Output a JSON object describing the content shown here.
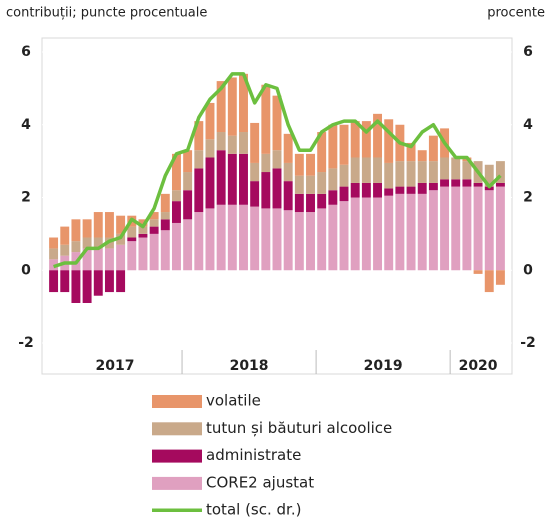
{
  "chart_data": {
    "type": "bar",
    "subtitle_left": "contribuții; puncte procentuale",
    "subtitle_right": "procente",
    "categories": [
      null,
      null,
      null,
      null,
      null,
      null,
      null,
      null,
      null,
      null,
      null,
      null,
      null,
      null,
      null,
      null,
      null,
      null,
      null,
      null,
      null,
      null,
      null,
      null,
      null,
      null,
      null,
      null,
      null,
      null,
      null,
      null,
      null,
      null,
      null,
      null,
      null,
      null,
      null,
      null,
      null
    ],
    "year_labels": [
      "2017",
      "2018",
      "2019",
      "2020"
    ],
    "ylim": [
      -2,
      6
    ],
    "yticks": [
      -2,
      0,
      2,
      4,
      6
    ],
    "y2lim": [
      -2,
      6
    ],
    "y2ticks": [
      -2,
      0,
      2,
      4,
      6
    ],
    "series": [
      {
        "name": "volatile",
        "color": "#e8956a",
        "values": [
          0.3,
          0.5,
          0.6,
          0.5,
          0.7,
          0.7,
          0.5,
          0.3,
          0.2,
          0.2,
          0.5,
          1.0,
          0.6,
          0.8,
          1.0,
          1.4,
          1.6,
          1.6,
          1.1,
          1.9,
          1.5,
          0.8,
          0.6,
          0.6,
          1.1,
          1.2,
          1.1,
          1.0,
          1.0,
          1.2,
          1.2,
          1.0,
          0.5,
          0.3,
          0.7,
          0.8,
          0.0,
          0.1,
          -0.1,
          -0.6,
          -0.4
        ]
      },
      {
        "name": "tutun și băuturi alcoolice",
        "color": "#c9a98a",
        "values": [
          0.3,
          0.3,
          0.3,
          0.3,
          0.3,
          0.3,
          0.3,
          0.3,
          0.2,
          0.2,
          0.2,
          0.3,
          0.5,
          0.5,
          0.5,
          0.5,
          0.5,
          0.6,
          0.5,
          0.5,
          0.5,
          0.5,
          0.5,
          0.5,
          0.6,
          0.6,
          0.6,
          0.7,
          0.7,
          0.7,
          0.7,
          0.7,
          0.7,
          0.6,
          0.6,
          0.6,
          0.6,
          0.5,
          0.6,
          0.6,
          0.6
        ]
      },
      {
        "name": "administrate",
        "color": "#a50a5e",
        "values": [
          -0.6,
          -0.6,
          -0.9,
          -0.9,
          -0.7,
          -0.6,
          -0.6,
          0.1,
          0.1,
          0.2,
          0.3,
          0.6,
          0.8,
          1.2,
          1.4,
          1.5,
          1.4,
          1.4,
          0.7,
          1.0,
          1.1,
          0.8,
          0.5,
          0.5,
          0.4,
          0.4,
          0.4,
          0.4,
          0.4,
          0.4,
          0.2,
          0.2,
          0.2,
          0.3,
          0.2,
          0.2,
          0.2,
          0.2,
          0.1,
          0.1,
          0.1
        ]
      },
      {
        "name": "CORE2 ajustat",
        "color": "#e0a0c0",
        "values": [
          0.3,
          0.4,
          0.5,
          0.6,
          0.6,
          0.6,
          0.7,
          0.8,
          0.9,
          1.0,
          1.1,
          1.3,
          1.4,
          1.6,
          1.7,
          1.8,
          1.8,
          1.8,
          1.75,
          1.7,
          1.7,
          1.65,
          1.6,
          1.6,
          1.7,
          1.8,
          1.9,
          2.0,
          2.0,
          2.0,
          2.05,
          2.1,
          2.1,
          2.1,
          2.2,
          2.3,
          2.3,
          2.3,
          2.3,
          2.2,
          2.3
        ]
      },
      {
        "name": "total (sc. dr.)",
        "color": "#6cbf3f",
        "axis": "y2",
        "type": "line",
        "values": [
          0.1,
          0.2,
          0.2,
          0.6,
          0.6,
          0.8,
          0.9,
          1.4,
          1.2,
          1.7,
          2.6,
          3.2,
          3.3,
          4.2,
          4.7,
          5.0,
          5.4,
          5.4,
          4.6,
          5.1,
          5.0,
          4.0,
          3.3,
          3.3,
          3.8,
          4.0,
          4.1,
          4.1,
          3.8,
          4.1,
          3.8,
          3.5,
          3.4,
          3.8,
          4.0,
          3.5,
          3.1,
          3.1,
          2.7,
          2.3,
          2.6
        ]
      }
    ]
  }
}
